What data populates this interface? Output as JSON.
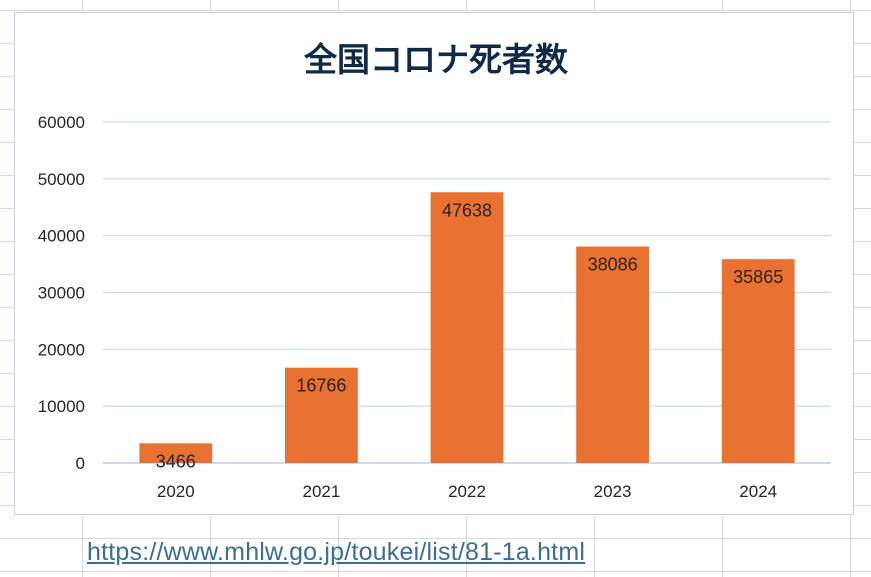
{
  "colors": {
    "bar": "#e97132",
    "grid": "#c7d9ea",
    "axis": "#bfcfe0",
    "title": "#0f2a47",
    "text": "#262626",
    "link": "#3c6f8f"
  },
  "chart_data": {
    "type": "bar",
    "title": "全国コロナ死者数",
    "xlabel": "",
    "ylabel": "",
    "categories": [
      "2020",
      "2021",
      "2022",
      "2023",
      "2024"
    ],
    "values": [
      3466,
      16766,
      47638,
      38086,
      35865
    ],
    "data_labels": [
      "3466",
      "16766",
      "47638",
      "38086",
      "35865"
    ],
    "ylim": [
      0,
      60000
    ],
    "yticks": [
      "0",
      "10000",
      "20000",
      "30000",
      "40000",
      "50000",
      "60000"
    ],
    "grid": true,
    "legend": "none"
  },
  "source": {
    "link_text": "https://www.mhlw.go.jp/toukei/list/81-1a.html"
  }
}
